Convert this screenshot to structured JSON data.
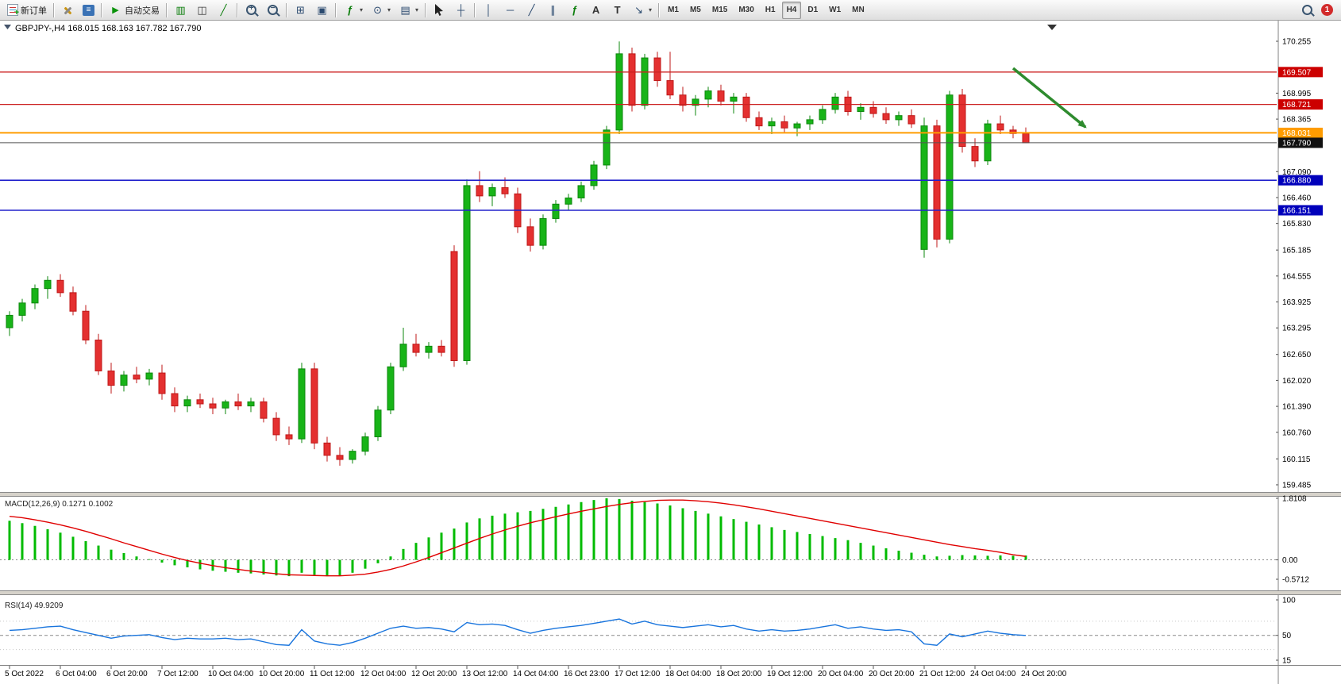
{
  "toolbar": {
    "new_order_label": "新订单",
    "autotrade_label": "自动交易",
    "timeframes": [
      "M1",
      "M5",
      "M15",
      "M30",
      "H1",
      "H4",
      "D1",
      "W1",
      "MN"
    ],
    "active_timeframe": "H4",
    "notification_count": "1",
    "items": [
      {
        "name": "new-order-button",
        "icon": "neworder",
        "label": "新订单"
      },
      {
        "type": "sep"
      },
      {
        "name": "metaeditor-button",
        "icon": "hammer"
      },
      {
        "name": "terminal-button",
        "icon": "terminal"
      },
      {
        "type": "sep"
      },
      {
        "name": "autotrade-button",
        "icon": "play",
        "label": "自动交易"
      },
      {
        "type": "sep"
      },
      {
        "name": "bar-chart-button",
        "icon": "bars"
      },
      {
        "name": "candlestick-button",
        "icon": "candles"
      },
      {
        "name": "line-chart-button",
        "icon": "linechart"
      },
      {
        "type": "sep"
      },
      {
        "name": "zoom-in-button",
        "icon": "zoom-in"
      },
      {
        "name": "zoom-out-button",
        "icon": "zoom-out"
      },
      {
        "type": "sep"
      },
      {
        "name": "tile-windows-button",
        "icon": "tile"
      },
      {
        "name": "cascade-windows-button",
        "icon": "cascade"
      },
      {
        "type": "sep"
      },
      {
        "name": "indicators-button",
        "icon": "indicator",
        "dropdown": true
      },
      {
        "name": "periods-button",
        "icon": "clock",
        "dropdown": true
      },
      {
        "name": "templates-button",
        "icon": "template",
        "dropdown": true
      },
      {
        "type": "sep"
      },
      {
        "name": "cursor-button",
        "icon": "cursor"
      },
      {
        "name": "crosshair-button",
        "icon": "crosshair"
      },
      {
        "type": "sep"
      },
      {
        "name": "vertical-line-button",
        "icon": "vline"
      },
      {
        "name": "horizontal-line-button",
        "icon": "hline"
      },
      {
        "name": "trendline-button",
        "icon": "trendline"
      },
      {
        "name": "channel-button",
        "icon": "channel"
      },
      {
        "name": "fibonacci-button",
        "icon": "fibo"
      },
      {
        "name": "text-button",
        "icon": "text"
      },
      {
        "name": "text-label-button",
        "icon": "label"
      },
      {
        "name": "arrows-button",
        "icon": "arrows",
        "dropdown": true
      },
      {
        "type": "sep"
      }
    ]
  },
  "chart": {
    "title": "GBPJPY-,H4 168.015 168.163 167.782 167.790",
    "symbol": "GBPJPY-",
    "period": "H4",
    "colors": {
      "bg": "#ffffff",
      "up": "#18b418",
      "up_stroke": "#0c870c",
      "down": "#e43030",
      "down_stroke": "#bf1818",
      "macd_hist": "#00bb00",
      "macd_signal": "#e00000",
      "rsi_line": "#1874dd",
      "arrow": "#2e8b2e",
      "axis_text": "#000000"
    }
  },
  "chart_data": [
    {
      "type": "candlestick",
      "symbol": "GBPJPY-",
      "timeframe": "H4",
      "title": "GBPJPY-,H4 168.015 168.163 167.782 167.790",
      "ohlc": [
        [
          163.3,
          163.7,
          163.1,
          163.6
        ],
        [
          163.6,
          164.0,
          163.45,
          163.9
        ],
        [
          163.9,
          164.35,
          163.75,
          164.25
        ],
        [
          164.25,
          164.55,
          164.0,
          164.45
        ],
        [
          164.45,
          164.6,
          164.05,
          164.15
        ],
        [
          164.15,
          164.3,
          163.6,
          163.7
        ],
        [
          163.7,
          163.85,
          162.9,
          163.0
        ],
        [
          163.0,
          163.15,
          162.15,
          162.25
        ],
        [
          162.25,
          162.45,
          161.7,
          161.9
        ],
        [
          161.9,
          162.25,
          161.75,
          162.15
        ],
        [
          162.15,
          162.35,
          161.95,
          162.05
        ],
        [
          162.05,
          162.3,
          161.9,
          162.2
        ],
        [
          162.2,
          162.4,
          161.55,
          161.7
        ],
        [
          161.7,
          161.85,
          161.25,
          161.4
        ],
        [
          161.4,
          161.65,
          161.25,
          161.55
        ],
        [
          161.55,
          161.7,
          161.35,
          161.45
        ],
        [
          161.45,
          161.6,
          161.2,
          161.35
        ],
        [
          161.35,
          161.55,
          161.2,
          161.5
        ],
        [
          161.5,
          161.7,
          161.3,
          161.4
        ],
        [
          161.4,
          161.6,
          161.25,
          161.5
        ],
        [
          161.5,
          161.6,
          161.0,
          161.1
        ],
        [
          161.1,
          161.25,
          160.55,
          160.7
        ],
        [
          160.7,
          160.9,
          160.45,
          160.6
        ],
        [
          160.6,
          162.45,
          160.5,
          162.3
        ],
        [
          162.3,
          162.45,
          160.35,
          160.5
        ],
        [
          160.5,
          160.65,
          160.05,
          160.2
        ],
        [
          160.2,
          160.4,
          159.95,
          160.1
        ],
        [
          160.1,
          160.35,
          160.0,
          160.3
        ],
        [
          160.3,
          160.75,
          160.2,
          160.65
        ],
        [
          160.65,
          161.4,
          160.55,
          161.3
        ],
        [
          161.3,
          162.45,
          161.2,
          162.35
        ],
        [
          162.35,
          163.3,
          162.25,
          162.9
        ],
        [
          162.9,
          163.15,
          162.6,
          162.7
        ],
        [
          162.7,
          162.95,
          162.55,
          162.85
        ],
        [
          162.85,
          163.0,
          162.6,
          162.7
        ],
        [
          165.15,
          165.3,
          162.35,
          162.5
        ],
        [
          162.5,
          166.9,
          162.4,
          166.75
        ],
        [
          166.75,
          167.1,
          166.35,
          166.5
        ],
        [
          166.5,
          166.8,
          166.25,
          166.7
        ],
        [
          166.7,
          166.95,
          166.45,
          166.55
        ],
        [
          166.55,
          166.7,
          165.6,
          165.75
        ],
        [
          165.75,
          165.95,
          165.15,
          165.3
        ],
        [
          165.3,
          166.05,
          165.2,
          165.95
        ],
        [
          165.95,
          166.4,
          165.85,
          166.3
        ],
        [
          166.3,
          166.55,
          166.15,
          166.45
        ],
        [
          166.45,
          166.85,
          166.35,
          166.75
        ],
        [
          166.75,
          167.35,
          166.65,
          167.25
        ],
        [
          167.25,
          168.2,
          167.15,
          168.1
        ],
        [
          168.1,
          170.25,
          168.0,
          169.95
        ],
        [
          169.95,
          170.1,
          168.55,
          168.7
        ],
        [
          168.7,
          169.95,
          168.6,
          169.85
        ],
        [
          169.85,
          170.0,
          169.15,
          169.3
        ],
        [
          169.3,
          170.0,
          168.85,
          168.95
        ],
        [
          168.95,
          169.15,
          168.55,
          168.7
        ],
        [
          168.7,
          168.95,
          168.45,
          168.85
        ],
        [
          168.85,
          169.15,
          168.65,
          169.05
        ],
        [
          169.05,
          169.2,
          168.7,
          168.8
        ],
        [
          168.8,
          169.0,
          168.5,
          168.9
        ],
        [
          168.9,
          169.0,
          168.3,
          168.4
        ],
        [
          168.4,
          168.55,
          168.1,
          168.2
        ],
        [
          168.2,
          168.4,
          168.0,
          168.3
        ],
        [
          168.3,
          168.45,
          168.05,
          168.15
        ],
        [
          168.15,
          168.3,
          167.95,
          168.25
        ],
        [
          168.25,
          168.45,
          168.1,
          168.35
        ],
        [
          168.35,
          168.7,
          168.25,
          168.6
        ],
        [
          168.6,
          169.0,
          168.5,
          168.9
        ],
        [
          168.9,
          169.05,
          168.45,
          168.55
        ],
        [
          168.55,
          168.75,
          168.35,
          168.65
        ],
        [
          168.65,
          168.8,
          168.4,
          168.5
        ],
        [
          168.5,
          168.65,
          168.25,
          168.35
        ],
        [
          168.35,
          168.55,
          168.2,
          168.45
        ],
        [
          168.45,
          168.6,
          168.15,
          168.25
        ],
        [
          165.2,
          168.4,
          165.0,
          168.2
        ],
        [
          168.2,
          168.35,
          165.25,
          165.45
        ],
        [
          165.45,
          169.05,
          165.35,
          168.95
        ],
        [
          168.95,
          169.1,
          167.55,
          167.7
        ],
        [
          167.7,
          167.9,
          167.2,
          167.35
        ],
        [
          167.35,
          168.35,
          167.25,
          168.25
        ],
        [
          168.25,
          168.45,
          168.0,
          168.1
        ],
        [
          168.1,
          168.2,
          167.9,
          168.015
        ],
        [
          168.015,
          168.163,
          167.782,
          167.79
        ]
      ],
      "time_labels": [
        "5 Oct 2022",
        "6 Oct 04:00",
        "6 Oct 20:00",
        "7 Oct 12:00",
        "10 Oct 04:00",
        "10 Oct 20:00",
        "11 Oct 12:00",
        "12 Oct 04:00",
        "12 Oct 20:00",
        "13 Oct 12:00",
        "14 Oct 04:00",
        "16 Oct 23:00",
        "17 Oct 12:00",
        "18 Oct 04:00",
        "18 Oct 20:00",
        "19 Oct 12:00",
        "20 Oct 04:00",
        "20 Oct 20:00",
        "21 Oct 12:00",
        "24 Oct 04:00",
        "24 Oct 20:00"
      ],
      "label_every_candles": 4,
      "price_axis_ticks": [
        170.255,
        168.995,
        168.365,
        167.09,
        166.46,
        165.83,
        165.185,
        164.555,
        163.925,
        163.295,
        162.65,
        162.02,
        161.39,
        160.76,
        160.115,
        159.485
      ],
      "hlines": [
        {
          "price": 169.507,
          "label": "169.507",
          "color": "#cc2222",
          "label_bg": "#cc0000",
          "width": 1.3
        },
        {
          "price": 168.721,
          "label": "168.721",
          "color": "#cc2222",
          "label_bg": "#cc0000",
          "width": 1.3
        },
        {
          "price": 168.031,
          "label": "168.031",
          "color": "#ff9c00",
          "label_bg": "#ff9c00",
          "width": 2
        },
        {
          "price": 167.79,
          "label": "167.790",
          "color": "#555555",
          "label_bg": "#111111",
          "width": 1
        },
        {
          "price": 166.88,
          "label": "166.880",
          "color": "#2222cc",
          "label_bg": "#0000bb",
          "width": 1.6
        },
        {
          "price": 166.151,
          "label": "166.151",
          "color": "#2222cc",
          "label_bg": "#0000bb",
          "width": 1.6
        }
      ],
      "arrow_annotation": {
        "from_candle": 79,
        "from_price": 169.6,
        "to_candle": 84.7,
        "to_price": 168.17
      }
    },
    {
      "type": "bar",
      "name": "MACD",
      "label": "MACD(12,26,9) 0.1271 0.1002",
      "ymax": 1.8108,
      "ymin": -0.5712,
      "scale_labels": [
        "1.8108",
        "0.00",
        "-0.5712"
      ],
      "values_histogram": [
        1.15,
        1.08,
        1.0,
        0.9,
        0.8,
        0.68,
        0.55,
        0.42,
        0.3,
        0.2,
        0.1,
        0.02,
        -0.08,
        -0.16,
        -0.22,
        -0.28,
        -0.32,
        -0.35,
        -0.38,
        -0.4,
        -0.43,
        -0.46,
        -0.48,
        -0.38,
        -0.44,
        -0.48,
        -0.46,
        -0.38,
        -0.26,
        -0.1,
        0.1,
        0.32,
        0.5,
        0.66,
        0.8,
        0.92,
        1.1,
        1.22,
        1.3,
        1.36,
        1.4,
        1.44,
        1.5,
        1.56,
        1.63,
        1.7,
        1.76,
        1.81,
        1.79,
        1.74,
        1.7,
        1.66,
        1.6,
        1.52,
        1.44,
        1.36,
        1.28,
        1.2,
        1.12,
        1.04,
        0.96,
        0.88,
        0.82,
        0.76,
        0.7,
        0.64,
        0.58,
        0.5,
        0.42,
        0.34,
        0.27,
        0.21,
        0.15,
        0.1,
        0.12,
        0.14,
        0.13,
        0.12,
        0.13,
        0.12,
        0.1271
      ],
      "signal_line": [
        1.28,
        1.24,
        1.18,
        1.11,
        1.03,
        0.94,
        0.84,
        0.73,
        0.62,
        0.5,
        0.39,
        0.28,
        0.17,
        0.07,
        -0.02,
        -0.1,
        -0.17,
        -0.23,
        -0.28,
        -0.33,
        -0.37,
        -0.41,
        -0.44,
        -0.45,
        -0.46,
        -0.47,
        -0.47,
        -0.45,
        -0.42,
        -0.36,
        -0.28,
        -0.18,
        -0.06,
        0.07,
        0.21,
        0.35,
        0.49,
        0.63,
        0.76,
        0.88,
        0.99,
        1.09,
        1.18,
        1.27,
        1.35,
        1.43,
        1.5,
        1.57,
        1.63,
        1.68,
        1.72,
        1.75,
        1.76,
        1.76,
        1.74,
        1.71,
        1.67,
        1.62,
        1.56,
        1.5,
        1.43,
        1.36,
        1.29,
        1.22,
        1.15,
        1.08,
        1.01,
        0.94,
        0.87,
        0.8,
        0.73,
        0.66,
        0.59,
        0.52,
        0.45,
        0.39,
        0.33,
        0.28,
        0.22,
        0.15,
        0.1002
      ]
    },
    {
      "type": "line",
      "name": "RSI",
      "label": "RSI(14) 49.9209",
      "ymax": 100,
      "ymin": 15,
      "scale_labels": [
        "100",
        "50",
        "15"
      ],
      "level_lines": [
        70,
        50,
        30
      ],
      "values": [
        57,
        58,
        60,
        62,
        63,
        58,
        54,
        50,
        46,
        49,
        50,
        51,
        47,
        44,
        46,
        45,
        45,
        46,
        44,
        45,
        41,
        37,
        36,
        58,
        42,
        38,
        36,
        40,
        46,
        53,
        60,
        63,
        60,
        61,
        59,
        55,
        68,
        65,
        66,
        64,
        58,
        53,
        57,
        60,
        62,
        64,
        67,
        70,
        73,
        66,
        70,
        65,
        63,
        61,
        63,
        65,
        62,
        64,
        59,
        56,
        58,
        56,
        57,
        59,
        62,
        65,
        60,
        62,
        59,
        57,
        58,
        55,
        38,
        36,
        52,
        48,
        52,
        56,
        53,
        51,
        49.92
      ]
    }
  ]
}
